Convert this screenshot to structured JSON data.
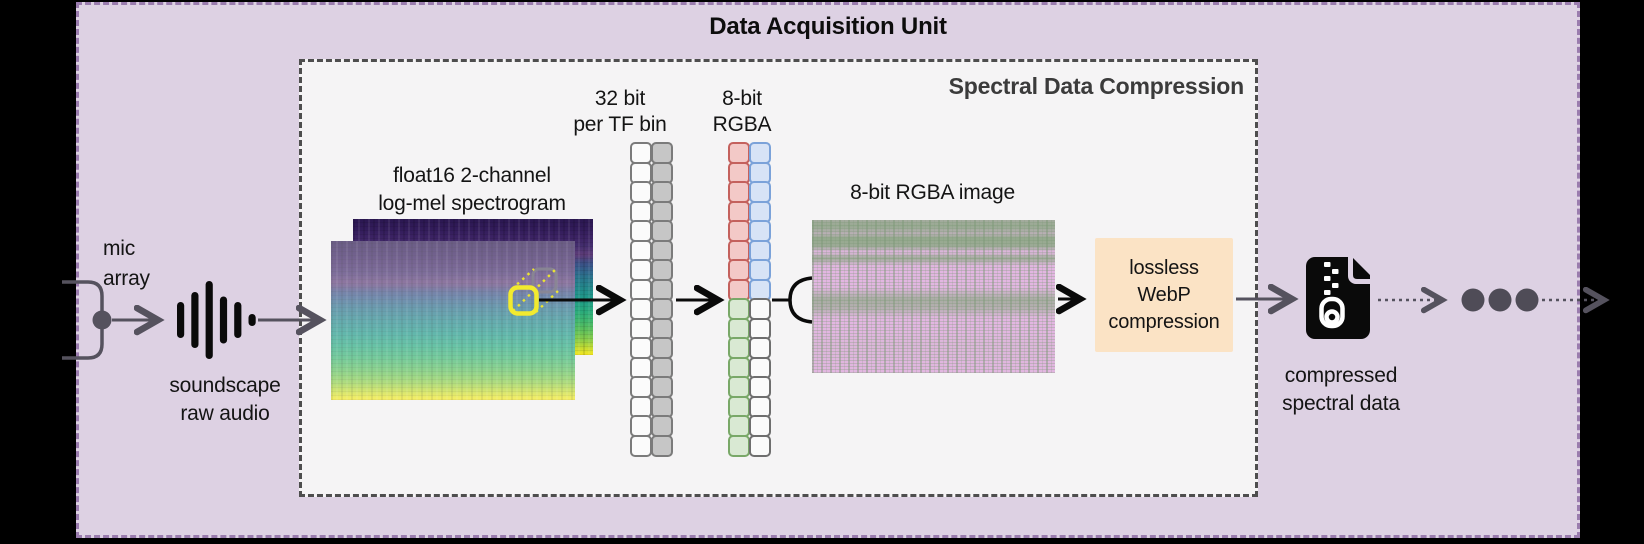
{
  "diagram": {
    "title": "Data Acquisition Unit",
    "inner_title": "Spectral Data Compression"
  },
  "labels": {
    "mic_array": [
      "mic",
      "array"
    ],
    "soundscape": [
      "soundscape",
      "raw audio"
    ],
    "spectrogram": [
      "float16 2-channel",
      "log-mel spectrogram"
    ],
    "bits32": [
      "32 bit",
      "per TF bin"
    ],
    "rgba_bits": [
      "8-bit",
      "RGBA"
    ],
    "rgba_image": "8-bit RGBA image",
    "webp": [
      "lossless",
      "WebP",
      "compression"
    ],
    "output": [
      "compressed",
      "spectral data"
    ]
  },
  "icons": {
    "waveform": "audio-waveform-icon",
    "zip_file": "zip-file-icon",
    "mic_bracket": "mic-array-bracket",
    "stream_dots": "ellipsis-stream-dots"
  },
  "columns": {
    "bits32": [
      {
        "name": "channel-1-bits",
        "cells": 16,
        "fill": "#fbfbfb",
        "border": "#7b7b7b"
      },
      {
        "name": "channel-2-bits",
        "cells": 16,
        "fill": "#c6c6c6",
        "border": "#7b7b7b"
      }
    ],
    "rgba": [
      {
        "name": "red-green-bits",
        "segments": [
          {
            "cells": 8,
            "fill": "#f3c9c7",
            "border": "#c4615d"
          },
          {
            "cells": 8,
            "fill": "#d9e9d3",
            "border": "#79a868"
          }
        ]
      },
      {
        "name": "blue-alpha-bits",
        "segments": [
          {
            "cells": 8,
            "fill": "#d7e3f6",
            "border": "#7ba2d9"
          },
          {
            "cells": 8,
            "fill": "#fafafa",
            "border": "#6e6e6e"
          }
        ]
      }
    ]
  },
  "colors": {
    "background": "#000000",
    "outer_fill": "#ddd1e3",
    "outer_border": "#9a7cae",
    "inner_fill": "#f5f4f5",
    "inner_border": "#4e4e4e",
    "arrow_black": "#0a0a0a",
    "arrow_gray": "#55525e",
    "dot_gray": "#4f4c57",
    "webp_fill": "#fbe3c5",
    "highlight_yellow": "#f2ea2f",
    "highlight_gray": "#8a8794"
  }
}
